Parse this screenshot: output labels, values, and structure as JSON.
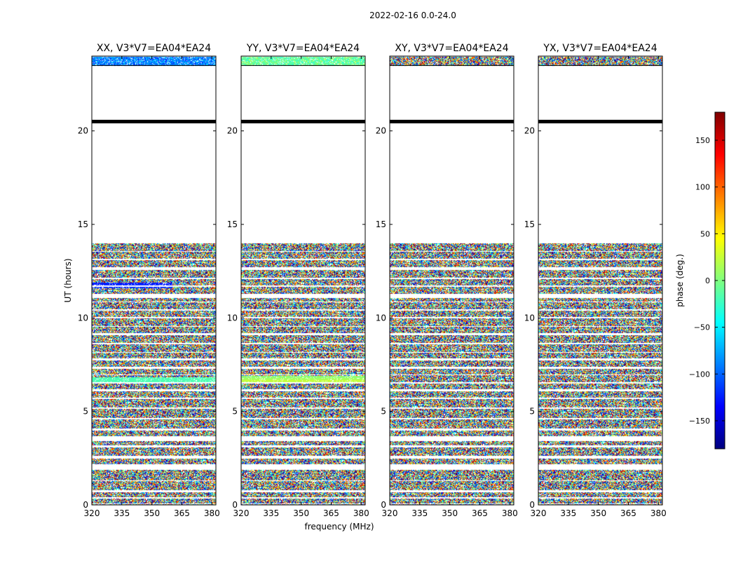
{
  "figure_title": "2022-02-16 0.0-24.0",
  "chart_data": {
    "type": "heatmap",
    "title": "2022-02-16 0.0-24.0",
    "xlabel": "frequency (MHz)",
    "ylabel": "UT (hours)",
    "xlim": [
      320,
      382
    ],
    "ylim": [
      0,
      24
    ],
    "x_ticks": [
      "320",
      "335",
      "350",
      "365",
      "380"
    ],
    "x_tick_values": [
      320,
      335,
      350,
      365,
      380
    ],
    "y_ticks": [
      "0",
      "5",
      "10",
      "15",
      "20"
    ],
    "y_tick_values": [
      0,
      5,
      10,
      15,
      20
    ],
    "colorbar": {
      "label": "phase (deg.)",
      "range": [
        -180,
        180
      ],
      "ticks": [
        "150",
        "100",
        "50",
        "0",
        "−50",
        "−100",
        "−150"
      ],
      "tick_values": [
        150,
        100,
        50,
        0,
        -50,
        -100,
        -150
      ],
      "colormap": "jet"
    },
    "panels": [
      {
        "name": "xx",
        "title": "XX, V3*V7=EA04*EA24"
      },
      {
        "name": "yy",
        "title": "YY, V3*V7=EA04*EA24"
      },
      {
        "name": "xy",
        "title": "XY, V3*V7=EA04*EA24"
      },
      {
        "name": "yx",
        "title": "YX, V3*V7=EA04*EA24"
      }
    ],
    "data_description": "Noisy phase vs frequency and UT; data present 0-14 h and 23.5-24 h, gap 14-23.5 h with a flagged line near 20.5 h",
    "data_segments_hours": [
      [
        0,
        14.0
      ],
      [
        23.5,
        24
      ]
    ],
    "flagged_line_hours": 20.5,
    "blank_bands_hours": [
      [
        0.05,
        0.1
      ],
      [
        0.35,
        0.45
      ],
      [
        0.7,
        0.8
      ],
      [
        1.3,
        1.35
      ],
      [
        1.9,
        2.2
      ],
      [
        2.5,
        2.65
      ],
      [
        3.1,
        3.2
      ],
      [
        3.45,
        3.7
      ],
      [
        4.0,
        4.1
      ],
      [
        4.6,
        4.65
      ],
      [
        5.15,
        5.25
      ],
      [
        5.7,
        5.75
      ],
      [
        6.1,
        6.2
      ],
      [
        6.5,
        6.6
      ],
      [
        6.95,
        7.0
      ],
      [
        7.3,
        7.4
      ],
      [
        7.75,
        7.85
      ],
      [
        8.15,
        8.2
      ],
      [
        8.6,
        8.7
      ],
      [
        9.1,
        9.2
      ],
      [
        9.55,
        9.6
      ],
      [
        10.0,
        10.05
      ],
      [
        10.4,
        10.5
      ],
      [
        10.85,
        10.9
      ],
      [
        11.1,
        11.3
      ],
      [
        11.7,
        11.75
      ],
      [
        12.1,
        12.15
      ],
      [
        12.6,
        12.75
      ],
      [
        13.1,
        13.2
      ],
      [
        13.55,
        13.6
      ]
    ]
  },
  "colors": {
    "axes": "#000000",
    "background": "#ffffff",
    "flag_line": "#000000"
  }
}
